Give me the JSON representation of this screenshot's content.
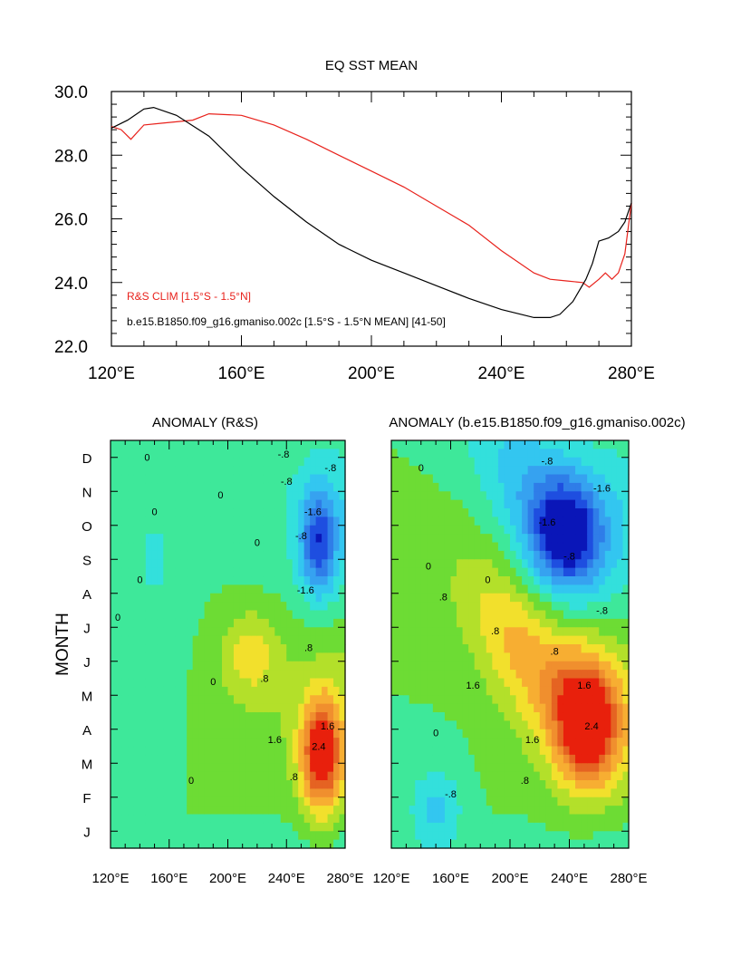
{
  "chart_data": [
    {
      "type": "line",
      "title": "EQ SST MEAN",
      "xlabel": "",
      "ylabel": "",
      "xlim": [
        120,
        280
      ],
      "ylim": [
        22,
        30
      ],
      "x_tick_labels": [
        "120°E",
        "160°E",
        "200°E",
        "240°E",
        "280°E"
      ],
      "y_tick_labels": [
        "22.0",
        "24.0",
        "26.0",
        "28.0",
        "30.0"
      ],
      "series": [
        {
          "name": "R&S CLIM [1.5°S - 1.5°N]",
          "color": "#e8221c",
          "x": [
            120,
            123,
            126,
            130,
            135,
            140,
            145,
            150,
            160,
            170,
            180,
            190,
            200,
            210,
            220,
            230,
            240,
            250,
            255,
            260,
            265,
            267,
            270,
            272,
            274,
            276,
            278,
            280
          ],
          "y": [
            28.9,
            28.8,
            28.5,
            28.95,
            29.0,
            29.05,
            29.1,
            29.3,
            29.25,
            28.95,
            28.5,
            28.0,
            27.5,
            27.0,
            26.4,
            25.8,
            25.0,
            24.3,
            24.1,
            24.05,
            24.0,
            23.85,
            24.1,
            24.3,
            24.1,
            24.3,
            24.9,
            26.5
          ]
        },
        {
          "name": "b.e15.B1850.f09_g16.gmaniso.002c [1.5°S - 1.5°N MEAN] [41-50]",
          "color": "#000000",
          "x": [
            120,
            125,
            130,
            133,
            140,
            150,
            160,
            170,
            180,
            190,
            200,
            210,
            220,
            230,
            240,
            250,
            255,
            258,
            262,
            266,
            268,
            270,
            273,
            276,
            278,
            280
          ],
          "y": [
            28.85,
            29.1,
            29.45,
            29.5,
            29.25,
            28.6,
            27.6,
            26.7,
            25.9,
            25.2,
            24.7,
            24.3,
            23.9,
            23.5,
            23.15,
            22.9,
            22.9,
            23.0,
            23.4,
            24.1,
            24.6,
            25.3,
            25.4,
            25.6,
            25.9,
            26.5
          ]
        }
      ],
      "legend": [
        "R&S CLIM [1.5°S - 1.5°N]",
        "b.e15.B1850.f09_g16.gmaniso.002c [1.5°S - 1.5°N MEAN] [41-50]"
      ]
    },
    {
      "type": "heatmap",
      "title": "ANOMALY (R&S)",
      "ylabel": "MONTH",
      "xlim": [
        120,
        280
      ],
      "x_tick_labels": [
        "120°E",
        "160°E",
        "200°E",
        "240°E",
        "280°E"
      ],
      "y_tick_labels": [
        "J",
        "F",
        "M",
        "A",
        "M",
        "J",
        "J",
        "A",
        "S",
        "O",
        "N",
        "D"
      ],
      "contour_interval": 0.4,
      "contour_labels": [
        "0",
        "0",
        "0",
        "0",
        "0",
        "0",
        "0",
        "0",
        "-.8",
        "-.8",
        "-1.6",
        "-1.6",
        "-.8",
        "-.8",
        ".8",
        ".8",
        "1.6",
        "2.4",
        "1.6",
        ".8"
      ],
      "features": [
        {
          "name": "warm-spring",
          "lon": 264,
          "month": 2.2,
          "peak": 2.8,
          "lon_width": 14,
          "month_width": 1.7
        },
        {
          "name": "cold-fall",
          "lon": 262,
          "month": 8.5,
          "peak": -2.0,
          "lon_width": 13,
          "month_width": 1.6
        }
      ]
    },
    {
      "type": "heatmap",
      "title": "ANOMALY (b.e15.B1850.f09_g16.gmaniso.002c)",
      "xlim": [
        120,
        280
      ],
      "x_tick_labels": [
        "120°E",
        "160°E",
        "200°E",
        "240°E",
        "280°E"
      ],
      "y_tick_labels": [
        "J",
        "F",
        "M",
        "A",
        "M",
        "J",
        "J",
        "A",
        "S",
        "O",
        "N",
        "D"
      ],
      "contour_interval": 0.4,
      "contour_labels": [
        "0",
        "0",
        "0",
        "0",
        "-.8",
        "-.8",
        "-1.6",
        "-1.6",
        "-.8",
        ".8",
        ".8",
        ".8",
        "1.6",
        "1.6",
        "2.4",
        "1.6",
        ".8",
        "-.8"
      ],
      "features": [
        {
          "name": "warm-band",
          "lon": 252,
          "month": 3.2,
          "peak": 2.7,
          "lon_width": 22,
          "month_width": 1.9
        },
        {
          "name": "cold-fall",
          "lon": 238,
          "month": 8.7,
          "peak": -2.3,
          "lon_width": 24,
          "month_width": 1.6
        }
      ]
    }
  ]
}
